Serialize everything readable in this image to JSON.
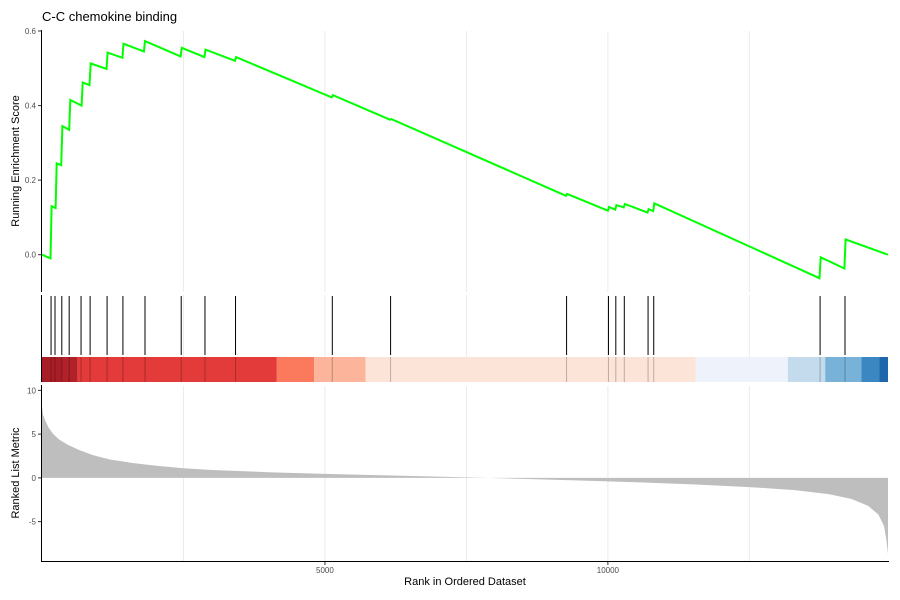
{
  "chart_data": {
    "type": "line",
    "title": "C-C chemokine binding",
    "xlabel": "Rank in Ordered Dataset",
    "x_ticks": [
      5000,
      10000
    ],
    "xlim": [
      0,
      14950
    ],
    "panels": {
      "enrichment": {
        "ylabel": "Running Enrichment Score",
        "ylim": [
          -0.1,
          0.6
        ],
        "y_ticks": [
          0.0,
          0.2,
          0.4,
          0.6
        ],
        "y_tick_labels": [
          "0.0",
          "0.2",
          "0.4",
          "0.6"
        ],
        "line_color": "#00ff00",
        "points": [
          [
            0,
            0.0
          ],
          [
            150,
            -0.01
          ],
          [
            170,
            0.13
          ],
          [
            240,
            0.125
          ],
          [
            260,
            0.245
          ],
          [
            340,
            0.24
          ],
          [
            360,
            0.345
          ],
          [
            480,
            0.335
          ],
          [
            500,
            0.415
          ],
          [
            700,
            0.4
          ],
          [
            720,
            0.462
          ],
          [
            840,
            0.455
          ],
          [
            860,
            0.513
          ],
          [
            1140,
            0.498
          ],
          [
            1160,
            0.542
          ],
          [
            1420,
            0.528
          ],
          [
            1440,
            0.566
          ],
          [
            1800,
            0.545
          ],
          [
            1820,
            0.573
          ],
          [
            2450,
            0.532
          ],
          [
            2470,
            0.555
          ],
          [
            2870,
            0.53
          ],
          [
            2890,
            0.55
          ],
          [
            3410,
            0.52
          ],
          [
            3430,
            0.53
          ],
          [
            5120,
            0.422
          ],
          [
            5140,
            0.428
          ],
          [
            6150,
            0.362
          ],
          [
            6170,
            0.364
          ],
          [
            9260,
            0.158
          ],
          [
            9280,
            0.163
          ],
          [
            10000,
            0.118
          ],
          [
            10020,
            0.128
          ],
          [
            10130,
            0.121
          ],
          [
            10150,
            0.133
          ],
          [
            10280,
            0.127
          ],
          [
            10300,
            0.136
          ],
          [
            10700,
            0.113
          ],
          [
            10720,
            0.122
          ],
          [
            10800,
            0.117
          ],
          [
            10820,
            0.138
          ],
          [
            13740,
            -0.063
          ],
          [
            13760,
            -0.007
          ],
          [
            14180,
            -0.037
          ],
          [
            14200,
            0.041
          ],
          [
            14950,
            0.0
          ]
        ]
      },
      "hits": {
        "positions": [
          160,
          230,
          350,
          480,
          690,
          850,
          1150,
          1430,
          1820,
          2460,
          2880,
          3420,
          5130,
          6160,
          9270,
          10010,
          10140,
          10290,
          10710,
          10810,
          13750,
          14190
        ]
      },
      "heatbar": {
        "segments": [
          {
            "from": 0,
            "to": 630,
            "color": "#b2202a"
          },
          {
            "from": 630,
            "to": 4150,
            "color": "#e33a3a"
          },
          {
            "from": 4150,
            "to": 4810,
            "color": "#fb7a5e"
          },
          {
            "from": 4810,
            "to": 5720,
            "color": "#fcb49a"
          },
          {
            "from": 5720,
            "to": 11550,
            "color": "#fde4d9"
          },
          {
            "from": 11550,
            "to": 13180,
            "color": "#eef3fb"
          },
          {
            "from": 13180,
            "to": 13840,
            "color": "#c3dbec"
          },
          {
            "from": 13840,
            "to": 14480,
            "color": "#78b2d8"
          },
          {
            "from": 14480,
            "to": 14800,
            "color": "#3a87c2"
          },
          {
            "from": 14800,
            "to": 14950,
            "color": "#1f66aa"
          }
        ]
      },
      "ranked": {
        "ylabel": "Ranked List Metric",
        "ylim": [
          -9.5,
          10.5
        ],
        "y_ticks": [
          -5,
          0,
          5,
          10
        ],
        "y_tick_labels": [
          "-5",
          "0",
          "5",
          "10"
        ],
        "fill_color": "#bebebe",
        "points": [
          [
            0,
            8.2
          ],
          [
            20,
            7.2
          ],
          [
            60,
            6.5
          ],
          [
            120,
            5.7
          ],
          [
            200,
            5.0
          ],
          [
            300,
            4.4
          ],
          [
            450,
            3.8
          ],
          [
            650,
            3.2
          ],
          [
            900,
            2.6
          ],
          [
            1200,
            2.1
          ],
          [
            1600,
            1.7
          ],
          [
            2000,
            1.4
          ],
          [
            2500,
            1.1
          ],
          [
            3000,
            0.9
          ],
          [
            4000,
            0.65
          ],
          [
            5000,
            0.45
          ],
          [
            6000,
            0.3
          ],
          [
            7000,
            0.15
          ],
          [
            7500,
            0.05
          ],
          [
            7900,
            0.0
          ],
          [
            8500,
            -0.12
          ],
          [
            9500,
            -0.3
          ],
          [
            10500,
            -0.5
          ],
          [
            11500,
            -0.75
          ],
          [
            12500,
            -1.05
          ],
          [
            13300,
            -1.4
          ],
          [
            13900,
            -1.85
          ],
          [
            14300,
            -2.4
          ],
          [
            14600,
            -3.2
          ],
          [
            14780,
            -4.2
          ],
          [
            14880,
            -5.5
          ],
          [
            14920,
            -7.0
          ],
          [
            14950,
            -8.7
          ]
        ]
      }
    }
  }
}
